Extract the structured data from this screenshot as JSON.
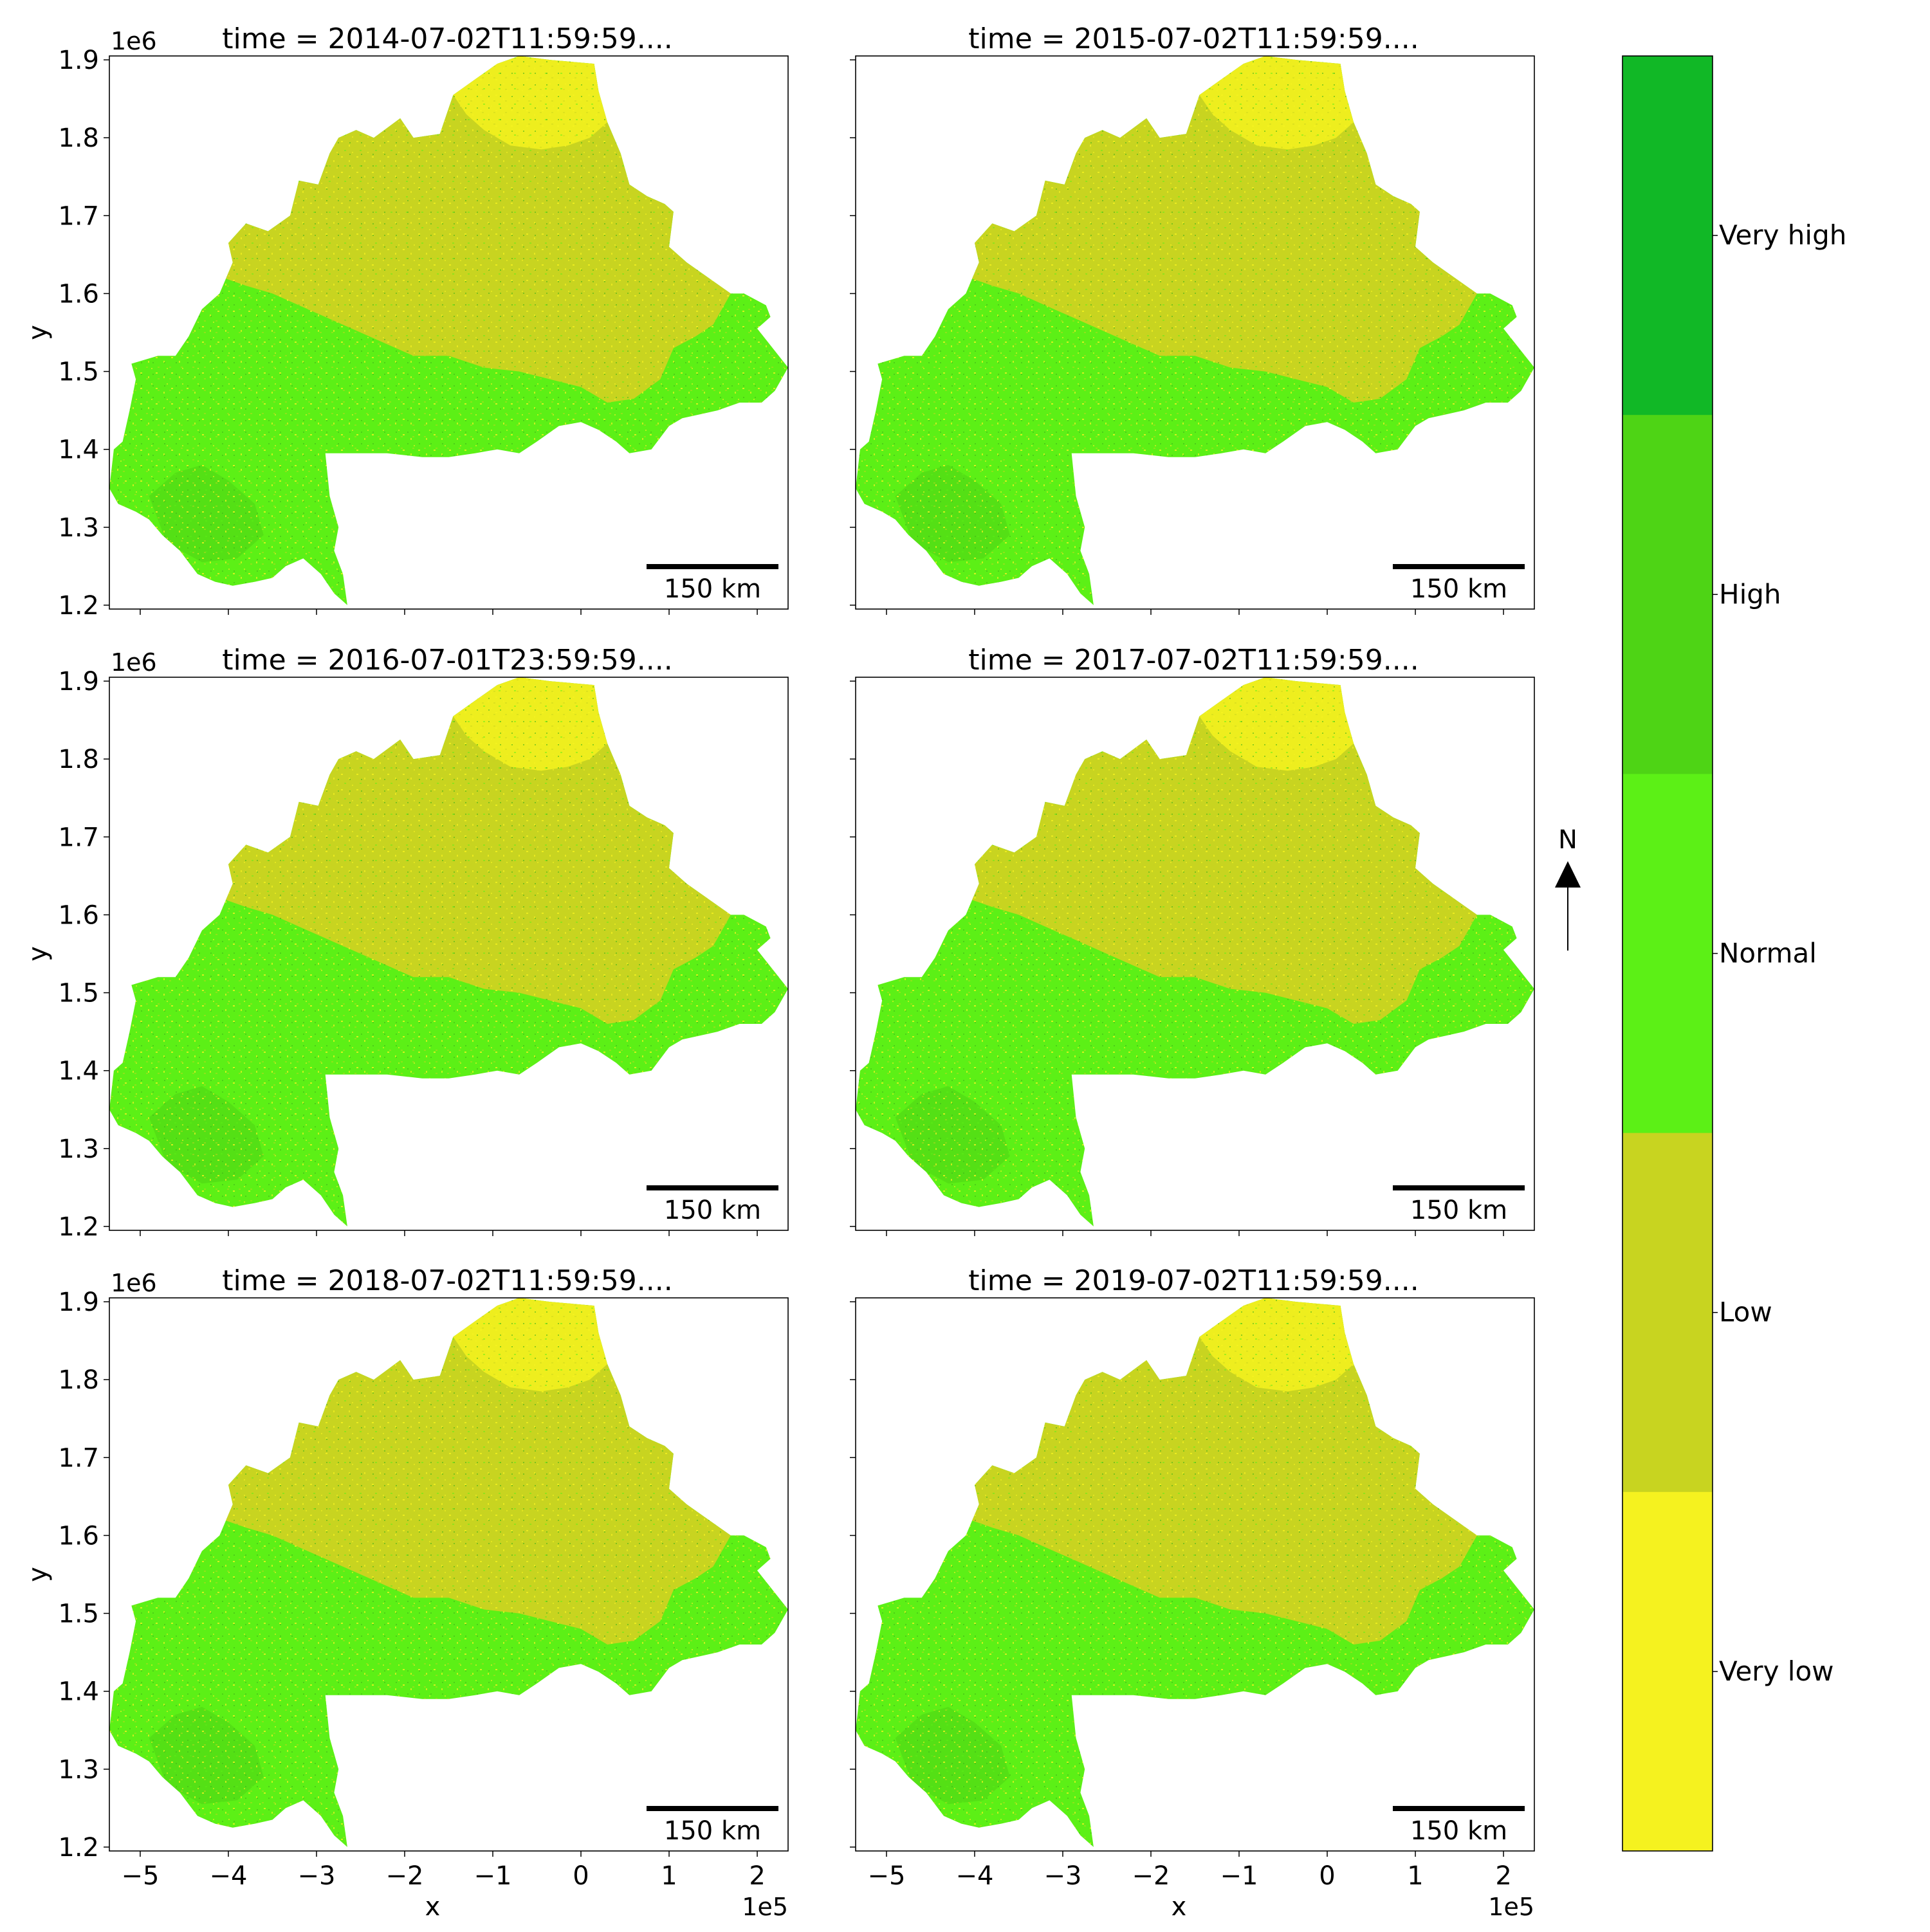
{
  "panels": [
    {
      "title": "time = 2014-07-02T11:59:59....",
      "scale_label": "150 km"
    },
    {
      "title": "time = 2015-07-02T11:59:59....",
      "scale_label": "150 km"
    },
    {
      "title": "time = 2016-07-01T23:59:59....",
      "scale_label": "150 km"
    },
    {
      "title": "time = 2017-07-02T11:59:59....",
      "scale_label": "150 km"
    },
    {
      "title": "time = 2018-07-02T11:59:59....",
      "scale_label": "150 km"
    },
    {
      "title": "time = 2019-07-02T11:59:59....",
      "scale_label": "150 km"
    }
  ],
  "axes": {
    "xlabel": "x",
    "ylabel": "y",
    "x_offset_label": "1e5",
    "y_offset_label": "1e6",
    "x_ticks": [
      "−5",
      "−4",
      "−3",
      "−2",
      "−1",
      "0",
      "1",
      "2"
    ],
    "y_ticks": [
      "1.9",
      "1.8",
      "1.7",
      "1.6",
      "1.5",
      "1.4",
      "1.3",
      "1.2"
    ]
  },
  "north_arrow": {
    "label": "N"
  },
  "colorbar": {
    "classes": [
      {
        "label": "Very high",
        "color": "#11b826"
      },
      {
        "label": "High",
        "color": "#4ed415"
      },
      {
        "label": "Normal",
        "color": "#5cf016"
      },
      {
        "label": "Low",
        "color": "#c8d420"
      },
      {
        "label": "Very low",
        "color": "#f5f21f"
      }
    ]
  }
}
